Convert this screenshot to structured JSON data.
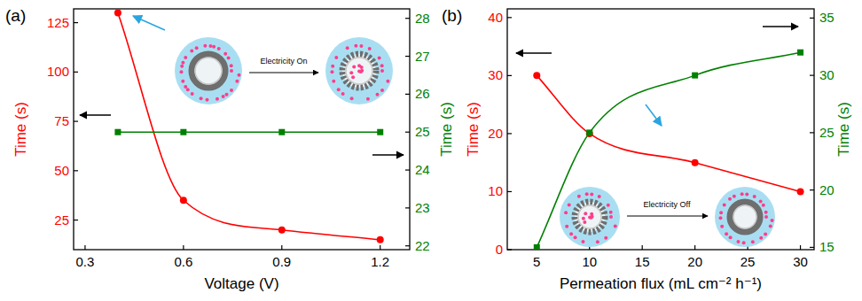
{
  "chart_data": [
    {
      "type": "line",
      "title": "(a)",
      "x": [
        0.4,
        0.6,
        0.9,
        1.2
      ],
      "xlabel": "Voltage (V)",
      "ylabel": "Time (s)",
      "y2label": "Time (s)",
      "xlim": [
        0.265,
        1.29
      ],
      "xticks": [
        0.3,
        0.6,
        0.9,
        1.2
      ],
      "ylim": [
        10,
        132
      ],
      "yticks": [
        25,
        50,
        75,
        100,
        125
      ],
      "y2lim": [
        21.9,
        28.25
      ],
      "y2ticks": [
        22,
        23,
        24,
        25,
        26,
        27,
        28
      ],
      "series": [
        {
          "color": "#ff0000",
          "marker": "circle",
          "line_style": "smooth",
          "values": [
            130,
            35,
            20,
            15
          ]
        },
        {
          "color": "#008000",
          "marker": "square",
          "line_style": "solid",
          "axis": "y2",
          "values": [
            25,
            25,
            25,
            25
          ]
        }
      ],
      "annotations": [
        "Electricity On"
      ]
    },
    {
      "type": "line",
      "title": "(b)",
      "x": [
        5,
        10,
        20,
        30
      ],
      "xlabel": "Permeation flux (mL cm⁻² h⁻¹)",
      "ylabel": "Time (s)",
      "y2label": "Time (s)",
      "xlim": [
        2.2,
        31.3
      ],
      "xticks": [
        5,
        10,
        15,
        20,
        25,
        30
      ],
      "ylim": [
        0,
        41.5
      ],
      "yticks": [
        0,
        10,
        20,
        30,
        40
      ],
      "y2lim": [
        14.8,
        35.8
      ],
      "y2ticks": [
        15,
        20,
        25,
        30,
        35
      ],
      "series": [
        {
          "color": "#ff0000",
          "marker": "circle",
          "line_style": "smooth",
          "values": [
            30,
            20,
            15,
            10
          ]
        },
        {
          "color": "#008000",
          "marker": "square",
          "line_style": "smooth",
          "axis": "y2",
          "values": [
            15,
            25,
            30,
            32
          ]
        }
      ],
      "annotations": [
        "Electricity Off"
      ]
    }
  ]
}
